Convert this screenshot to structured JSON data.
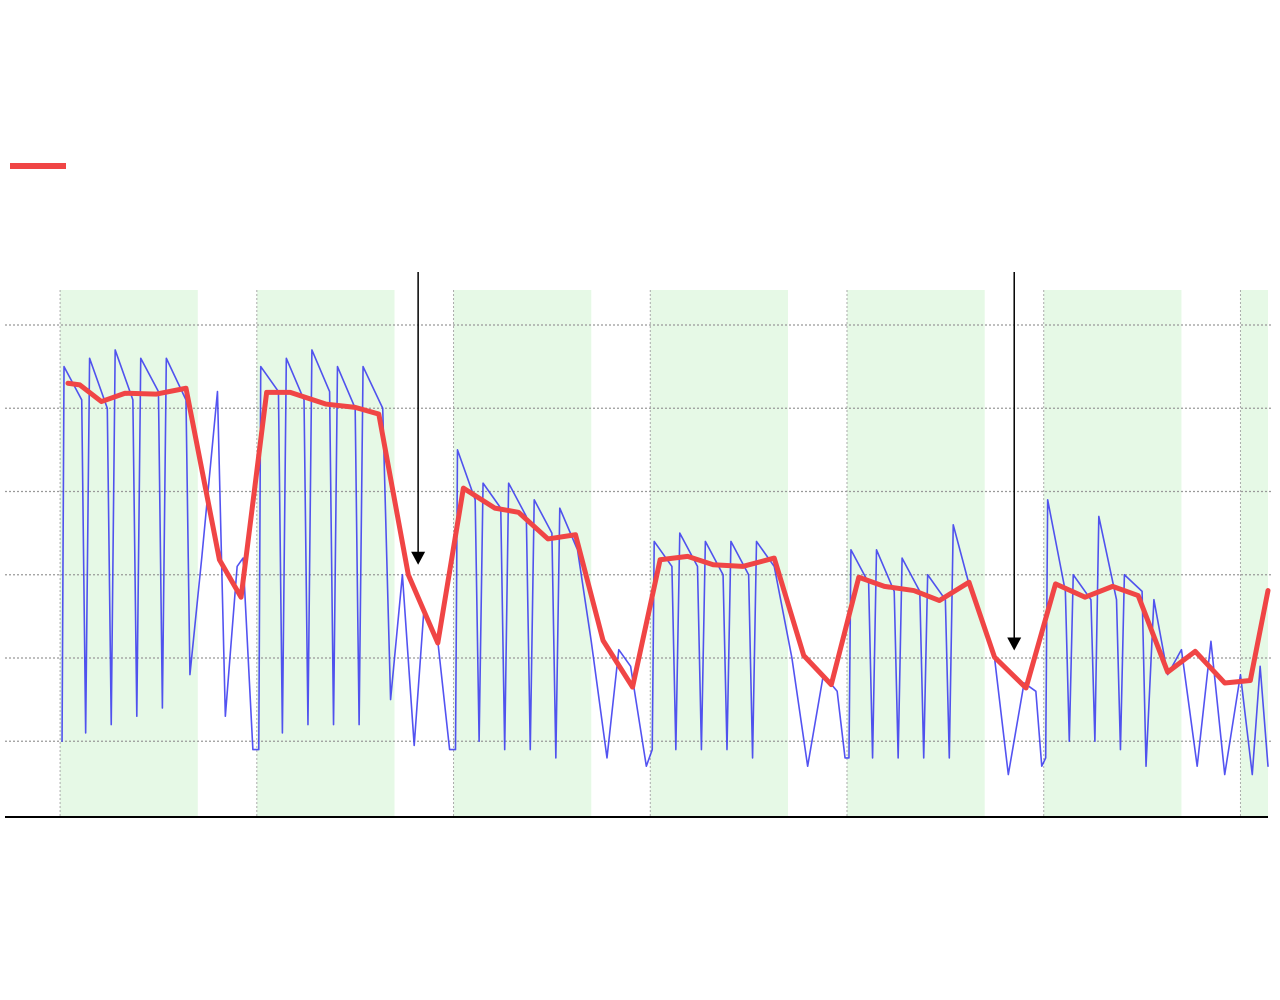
{
  "chart_data": {
    "type": "line",
    "xlim": [
      -0.28,
      6.14
    ],
    "ylim": [
      -0.91,
      5.42
    ],
    "xticks": [
      0,
      1,
      2,
      3,
      4,
      5,
      6
    ],
    "yticks": [
      0,
      1,
      2,
      3,
      4,
      5
    ],
    "grid": true,
    "bands": [
      [
        0,
        0.7
      ],
      [
        1,
        1.7
      ],
      [
        2,
        2.7
      ],
      [
        3,
        3.7
      ],
      [
        4,
        4.7
      ],
      [
        5,
        5.7
      ],
      [
        6,
        6.14
      ]
    ],
    "band_color": "#e6f9e6",
    "arrows": [
      {
        "x": 1.82,
        "y": 2.12
      },
      {
        "x": 4.85,
        "y": 1.09
      }
    ],
    "series": [
      {
        "color": "#3535ee",
        "x": [
          0.01,
          0.02,
          0.11,
          0.13,
          0.15,
          0.24,
          0.26,
          0.28,
          0.37,
          0.39,
          0.41,
          0.5,
          0.52,
          0.54,
          0.64,
          0.66,
          0.72,
          0.8,
          0.84,
          0.9,
          0.93,
          0.98,
          1.01,
          1.02,
          1.11,
          1.13,
          1.15,
          1.24,
          1.26,
          1.28,
          1.37,
          1.39,
          1.41,
          1.5,
          1.52,
          1.54,
          1.64,
          1.68,
          1.74,
          1.8,
          1.85,
          1.92,
          1.98,
          2.01,
          2.02,
          2.11,
          2.13,
          2.15,
          2.24,
          2.26,
          2.28,
          2.37,
          2.39,
          2.41,
          2.5,
          2.52,
          2.54,
          2.63,
          2.7,
          2.78,
          2.84,
          2.9,
          2.98,
          3.01,
          3.02,
          3.11,
          3.13,
          3.15,
          3.24,
          3.26,
          3.28,
          3.37,
          3.39,
          3.41,
          3.5,
          3.52,
          3.54,
          3.63,
          3.72,
          3.8,
          3.88,
          3.95,
          3.99,
          4.01,
          4.02,
          4.11,
          4.13,
          4.15,
          4.24,
          4.26,
          4.28,
          4.37,
          4.39,
          4.41,
          4.5,
          4.52,
          4.54,
          4.63,
          4.75,
          4.82,
          4.9,
          4.96,
          4.99,
          5.01,
          5.02,
          5.11,
          5.13,
          5.15,
          5.24,
          5.26,
          5.28,
          5.37,
          5.39,
          5.41,
          5.5,
          5.52,
          5.56,
          5.63,
          5.7,
          5.78,
          5.85,
          5.92,
          6.0,
          6.06,
          6.1,
          6.14
        ],
        "values": [
          0.0,
          4.5,
          4.1,
          0.1,
          4.6,
          4.0,
          0.2,
          4.7,
          4.1,
          0.3,
          4.6,
          4.2,
          0.4,
          4.6,
          4.1,
          0.8,
          2.2,
          4.2,
          0.3,
          2.1,
          2.2,
          -0.1,
          -0.1,
          4.5,
          4.2,
          0.1,
          4.6,
          4.1,
          0.2,
          4.7,
          4.2,
          0.2,
          4.5,
          4.0,
          0.2,
          4.5,
          4.0,
          0.5,
          2.0,
          -0.05,
          1.6,
          1.2,
          -0.1,
          -0.1,
          3.5,
          2.9,
          0.0,
          3.1,
          2.8,
          -0.1,
          3.1,
          2.7,
          -0.1,
          2.9,
          2.5,
          -0.2,
          2.8,
          2.3,
          1.2,
          -0.2,
          1.1,
          0.9,
          -0.3,
          -0.1,
          2.4,
          2.1,
          -0.1,
          2.5,
          2.1,
          -0.1,
          2.4,
          2.0,
          -0.1,
          2.4,
          2.0,
          -0.2,
          2.4,
          2.1,
          1.0,
          -0.3,
          0.8,
          0.6,
          -0.2,
          -0.2,
          2.3,
          1.9,
          -0.2,
          2.3,
          1.8,
          -0.2,
          2.2,
          1.8,
          -0.2,
          2.0,
          1.7,
          -0.2,
          2.6,
          1.8,
          1.0,
          -0.4,
          0.7,
          0.6,
          -0.3,
          -0.2,
          2.9,
          1.8,
          0.0,
          2.0,
          1.7,
          0.0,
          2.7,
          1.7,
          -0.1,
          2.0,
          1.8,
          -0.3,
          1.7,
          0.8,
          1.1,
          -0.3,
          1.2,
          -0.4,
          0.8,
          -0.4,
          0.9,
          -0.3
        ]
      },
      {
        "color": "#f04545",
        "x": [
          0.04,
          0.1,
          0.21,
          0.33,
          0.49,
          0.64,
          0.81,
          0.92,
          1.05,
          1.17,
          1.35,
          1.5,
          1.62,
          1.77,
          1.92,
          2.05,
          2.21,
          2.33,
          2.48,
          2.62,
          2.76,
          2.91,
          3.05,
          3.19,
          3.32,
          3.47,
          3.63,
          3.78,
          3.92,
          4.06,
          4.19,
          4.34,
          4.47,
          4.62,
          4.75,
          4.91,
          5.06,
          5.21,
          5.35,
          5.48,
          5.63,
          5.77,
          5.92,
          6.05,
          6.14
        ],
        "values": [
          4.3,
          4.28,
          4.08,
          4.18,
          4.17,
          4.24,
          2.18,
          1.73,
          4.19,
          4.19,
          4.05,
          4.01,
          3.93,
          2.0,
          1.18,
          3.04,
          2.8,
          2.75,
          2.43,
          2.48,
          1.21,
          0.65,
          2.18,
          2.22,
          2.12,
          2.1,
          2.2,
          1.03,
          0.68,
          1.97,
          1.86,
          1.81,
          1.69,
          1.91,
          1.01,
          0.64,
          1.89,
          1.73,
          1.86,
          1.75,
          0.83,
          1.08,
          0.7,
          0.73,
          1.81
        ]
      }
    ]
  }
}
